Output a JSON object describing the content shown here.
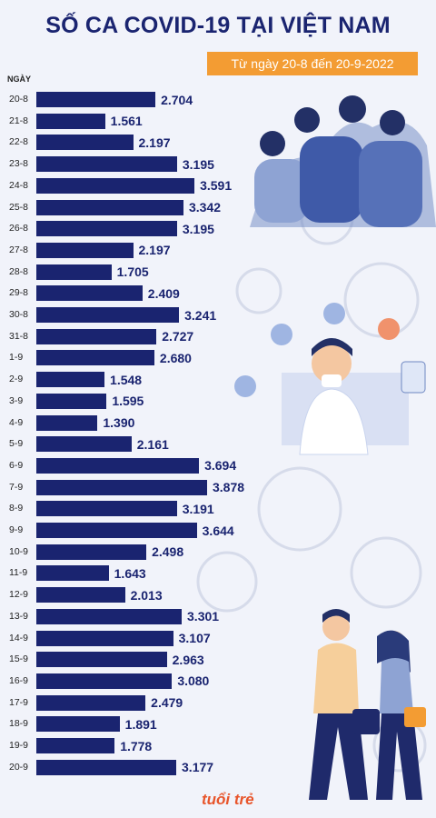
{
  "header": {
    "title": "SỐ CA COVID-19 TẠI VIỆT NAM",
    "subtitle": "Từ ngày 20-8 đến 20-9-2022"
  },
  "brand": {
    "logo_text": "tuổi trẻ"
  },
  "colors": {
    "bar": "#1a2470",
    "accent": "#f39c33",
    "background": "#f1f3fa",
    "logo": "#e8552b"
  },
  "chart_data": {
    "type": "bar",
    "orientation": "horizontal",
    "title": "SỐ CA COVID-19 TẠI VIỆT NAM",
    "subtitle": "Từ ngày 20-8 đến 20-9-2022",
    "ylabel": "NGÀY",
    "xlabel": "",
    "categories": [
      "20-8",
      "21-8",
      "22-8",
      "23-8",
      "24-8",
      "25-8",
      "26-8",
      "27-8",
      "28-8",
      "29-8",
      "30-8",
      "31-8",
      "1-9",
      "2-9",
      "3-9",
      "4-9",
      "5-9",
      "6-9",
      "7-9",
      "8-9",
      "9-9",
      "10-9",
      "11-9",
      "12-9",
      "13-9",
      "14-9",
      "15-9",
      "16-9",
      "17-9",
      "18-9",
      "19-9",
      "20-9"
    ],
    "values": [
      2704,
      1561,
      2197,
      3195,
      3591,
      3342,
      3195,
      2197,
      1705,
      2409,
      3241,
      2727,
      2680,
      1548,
      1595,
      1390,
      2161,
      3694,
      3878,
      3191,
      3644,
      2498,
      1643,
      2013,
      3301,
      3107,
      2963,
      3080,
      2479,
      1891,
      1778,
      3177
    ],
    "labels": [
      "2.704",
      "1.561",
      "2.197",
      "3.195",
      "3.591",
      "3.342",
      "3.195",
      "2.197",
      "1.705",
      "2.409",
      "3.241",
      "2.727",
      "2.680",
      "1.548",
      "1.595",
      "1.390",
      "2.161",
      "3.694",
      "3.878",
      "3.191",
      "3.644",
      "2.498",
      "1.643",
      "2.013",
      "3.301",
      "3.107",
      "2.963",
      "3.080",
      "2.479",
      "1.891",
      "1.778",
      "3.177"
    ],
    "grid": false,
    "legend": "none"
  }
}
